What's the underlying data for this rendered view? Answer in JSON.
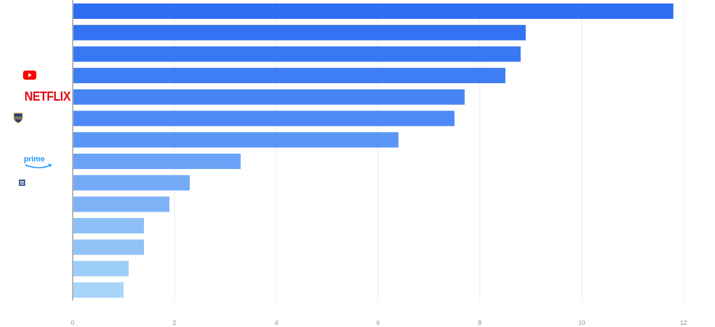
{
  "chart_data": {
    "type": "bar",
    "orientation": "horizontal",
    "categories": [
      "",
      "",
      "",
      "",
      "",
      "",
      "",
      "",
      "",
      "",
      "",
      "",
      "",
      ""
    ],
    "values": [
      11.8,
      8.9,
      8.8,
      8.5,
      7.7,
      7.5,
      6.4,
      3.3,
      2.3,
      1.9,
      1.4,
      1.4,
      1.1,
      1.0
    ],
    "xlim": [
      0,
      12
    ],
    "xticks": [
      "0",
      "2",
      "4",
      "6",
      "8",
      "10",
      "12"
    ],
    "grid": true,
    "colors": [
      "#2e6ef2",
      "#3272f3",
      "#3878f3",
      "#3e7ef4",
      "#4784f4",
      "#4d8af5",
      "#5b96f5",
      "#6aa2f6",
      "#74aaf6",
      "#7eb2f7",
      "#8ec0f8",
      "#92c3f8",
      "#9dcdf9",
      "#a8d5fa"
    ],
    "logos": {
      "youtube": "youtube-icon",
      "netflix": "NETFLIX",
      "warner": "warner-bros-shield-icon",
      "prime": "prime",
      "news": "news-icon"
    }
  }
}
